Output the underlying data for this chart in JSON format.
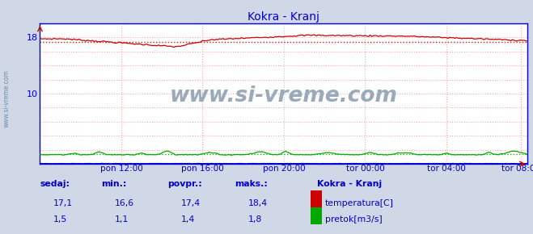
{
  "title": "Kokra - Kranj",
  "title_color": "#0000cc",
  "bg_color": "#d0d8e8",
  "plot_bg_color": "#ffffff",
  "x_min": 0,
  "x_max": 288,
  "y_min": 0,
  "y_max": 20,
  "yticks": [
    2,
    4,
    6,
    8,
    10,
    12,
    14,
    16,
    18
  ],
  "xtick_labels": [
    "pon 12:00",
    "pon 16:00",
    "pon 20:00",
    "tor 00:00",
    "tor 04:00",
    "tor 08:00"
  ],
  "xtick_positions": [
    48,
    96,
    144,
    192,
    240,
    284
  ],
  "temp_color": "#cc0000",
  "flow_color": "#00aa00",
  "level_color": "#0000cc",
  "avg_temp": 17.4,
  "avg_flow": 1.4,
  "grid_color": "#ffaaaa",
  "grid_vstyle": ":",
  "watermark": "www.si-vreme.com",
  "watermark_color": "#99aabb",
  "sidebar_text": "www.si-vreme.com",
  "sidebar_color": "#7788aa",
  "legend_title": "Kokra - Kranj",
  "legend_color": "#0000cc",
  "table_headers": [
    "sedaj:",
    "min.:",
    "povpr.:",
    "maks.:"
  ],
  "table_temp": [
    "17,1",
    "16,6",
    "17,4",
    "18,4"
  ],
  "table_flow": [
    "1,5",
    "1,1",
    "1,4",
    "1,8"
  ],
  "table_color": "#0000cc",
  "temp_label": "temperatura[C]",
  "flow_label": "pretok[m3/s]"
}
